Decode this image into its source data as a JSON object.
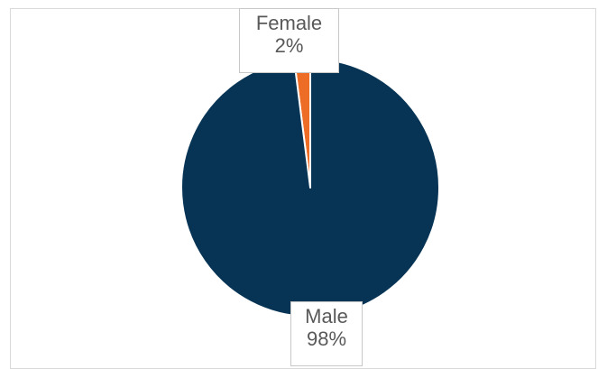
{
  "chart_data": {
    "type": "pie",
    "categories": [
      "Male",
      "Female"
    ],
    "values": [
      98,
      2
    ],
    "colors": [
      "#073454",
      "#ed6d26"
    ],
    "data_labels": {
      "Male": {
        "name": "Male",
        "value": "98%"
      },
      "Female": {
        "name": "Female",
        "value": "2%"
      }
    },
    "legend": "none"
  }
}
